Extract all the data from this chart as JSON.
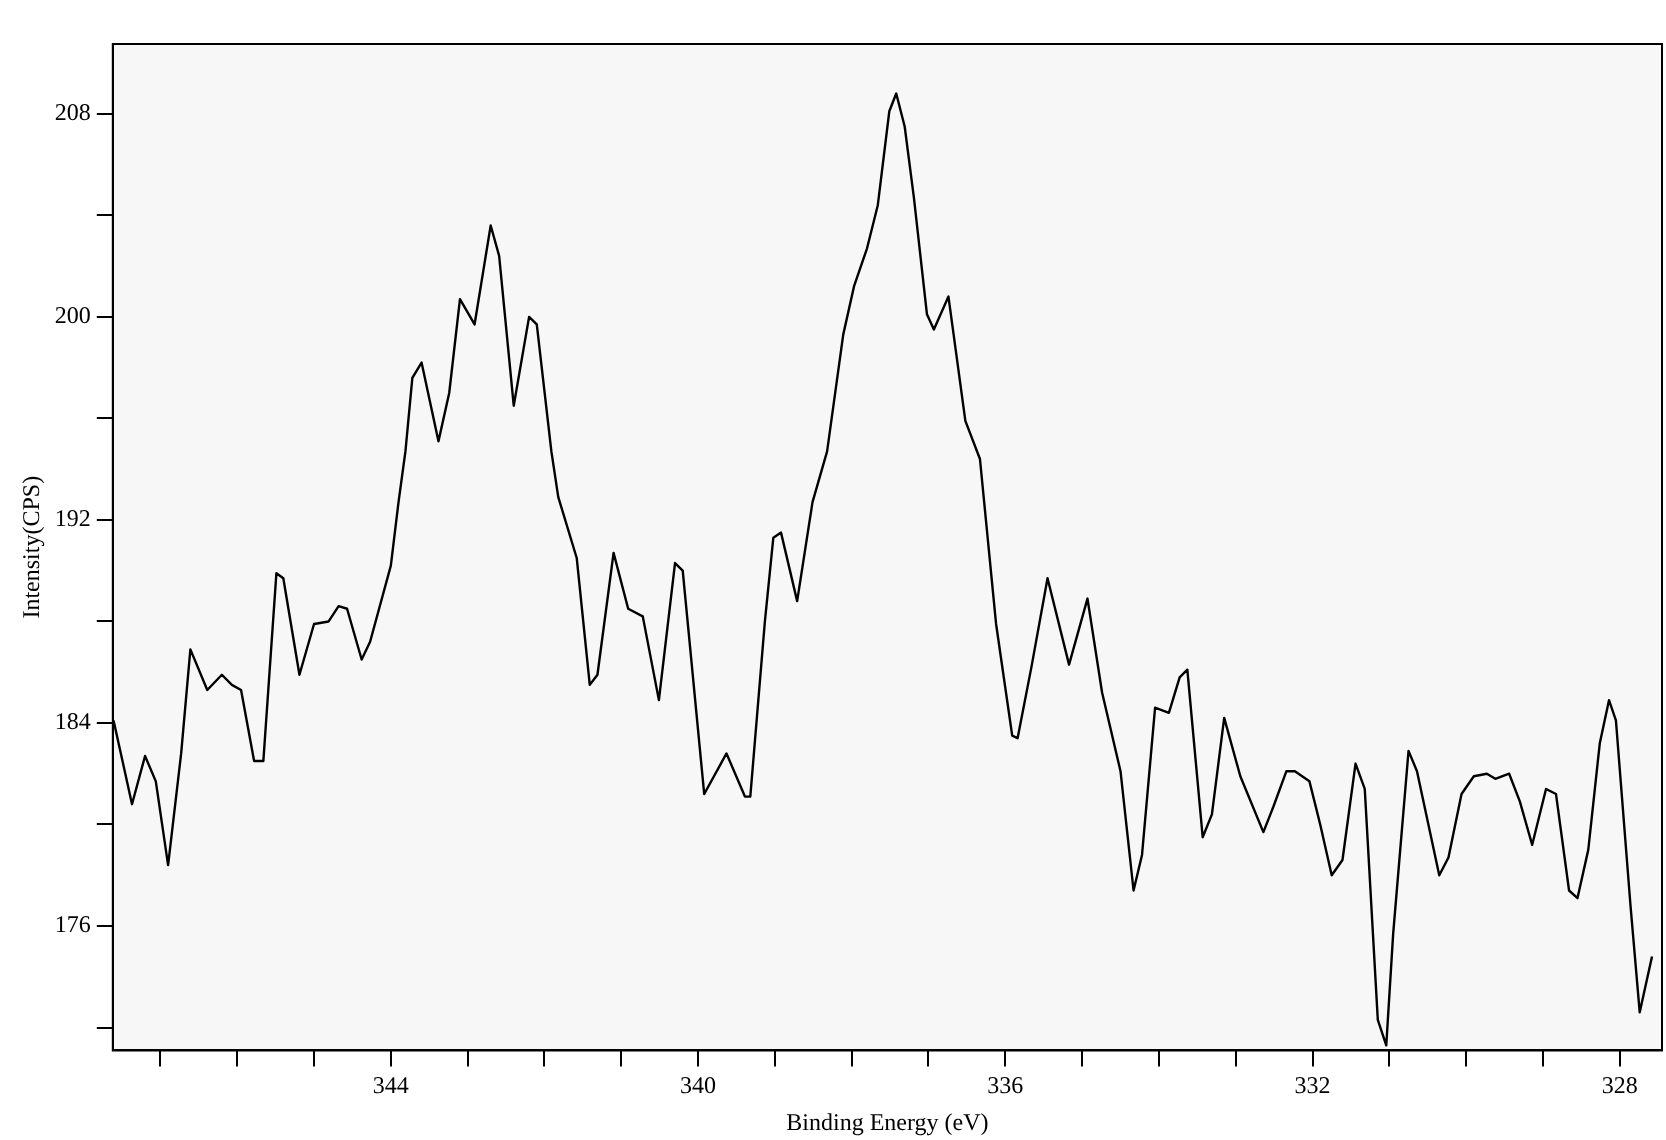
{
  "chart_data": {
    "type": "line",
    "xlabel": "Binding Energy (eV)",
    "ylabel": "Intensity(CPS)",
    "xlim": [
      347.62,
      327.45
    ],
    "ylim": [
      171.1,
      210.75
    ],
    "xticks": [
      {
        "value": 347,
        "label": null
      },
      {
        "value": 346,
        "label": null
      },
      {
        "value": 345,
        "label": null
      },
      344,
      {
        "value": 343,
        "label": null
      },
      {
        "value": 342,
        "label": null
      },
      {
        "value": 341,
        "label": null
      },
      340,
      {
        "value": 339,
        "label": null
      },
      {
        "value": 338,
        "label": null
      },
      {
        "value": 337,
        "label": null
      },
      336,
      {
        "value": 335,
        "label": null
      },
      {
        "value": 334,
        "label": null
      },
      {
        "value": 333,
        "label": null
      },
      332,
      {
        "value": 331,
        "label": null
      },
      {
        "value": 330,
        "label": null
      },
      {
        "value": 329,
        "label": null
      },
      328
    ],
    "yticks": [
      {
        "value": 172,
        "label": null
      },
      176,
      {
        "value": 180,
        "label": null
      },
      184,
      {
        "value": 188,
        "label": null
      },
      192,
      {
        "value": 196,
        "label": null
      },
      200,
      {
        "value": 204,
        "label": null
      },
      208
    ],
    "grid": false,
    "legend": false,
    "marker": "none",
    "line_style": "solid",
    "x": [
      347.61,
      347.37,
      347.2,
      347.06,
      346.9,
      346.73,
      346.61,
      346.39,
      346.2,
      346.07,
      345.95,
      345.78,
      345.66,
      345.49,
      345.4,
      345.19,
      345.0,
      344.81,
      344.68,
      344.57,
      344.38,
      344.27,
      344.0,
      343.9,
      343.81,
      343.72,
      343.6,
      343.38,
      343.24,
      343.1,
      342.91,
      342.7,
      342.59,
      342.4,
      342.2,
      342.1,
      341.91,
      341.82,
      341.58,
      341.41,
      341.31,
      341.1,
      340.91,
      340.72,
      340.51,
      340.3,
      340.2,
      339.92,
      339.63,
      339.39,
      339.32,
      339.13,
      339.02,
      338.92,
      338.71,
      338.51,
      338.32,
      338.11,
      337.97,
      337.8,
      337.66,
      337.51,
      337.42,
      337.31,
      337.19,
      337.02,
      336.93,
      336.74,
      336.52,
      336.33,
      336.12,
      335.91,
      335.84,
      335.66,
      335.45,
      335.17,
      334.93,
      334.74,
      334.5,
      334.33,
      334.22,
      334.05,
      333.87,
      333.73,
      333.63,
      333.43,
      333.31,
      333.15,
      332.94,
      332.64,
      332.51,
      332.34,
      332.23,
      332.04,
      331.9,
      331.75,
      331.61,
      331.44,
      331.32,
      331.15,
      331.04,
      330.95,
      330.75,
      330.64,
      330.35,
      330.23,
      330.06,
      329.9,
      329.73,
      329.62,
      329.44,
      329.3,
      329.14,
      328.96,
      328.83,
      328.66,
      328.55,
      328.41,
      328.26,
      328.14,
      328.05,
      327.86,
      327.74,
      327.58
    ],
    "series": [
      {
        "color": "#000000",
        "values": [
          184.1,
          180.8,
          182.7,
          181.7,
          178.4,
          182.8,
          186.9,
          185.3,
          185.9,
          185.5,
          185.3,
          182.5,
          182.5,
          189.9,
          189.7,
          185.9,
          187.9,
          188.0,
          188.6,
          188.5,
          186.5,
          187.2,
          190.2,
          192.7,
          194.7,
          197.6,
          198.2,
          195.1,
          197.0,
          200.7,
          199.7,
          203.6,
          202.4,
          196.5,
          200.0,
          199.7,
          194.7,
          192.9,
          190.5,
          185.5,
          185.9,
          190.7,
          188.5,
          188.2,
          184.9,
          190.3,
          190.0,
          181.2,
          182.8,
          181.1,
          181.1,
          188.0,
          191.3,
          191.5,
          188.8,
          192.7,
          194.7,
          199.3,
          201.2,
          202.7,
          204.4,
          208.1,
          208.8,
          207.5,
          204.7,
          200.1,
          199.5,
          200.8,
          195.9,
          194.4,
          187.9,
          183.5,
          183.4,
          186.2,
          189.7,
          186.3,
          188.9,
          185.2,
          182.1,
          177.4,
          178.8,
          184.6,
          184.4,
          185.8,
          186.1,
          179.5,
          180.4,
          184.2,
          181.9,
          179.7,
          180.7,
          182.1,
          182.1,
          181.7,
          180.0,
          178.0,
          178.6,
          182.4,
          181.4,
          172.3,
          171.3,
          175.7,
          182.9,
          182.1,
          178.0,
          178.7,
          181.2,
          181.9,
          182.0,
          181.8,
          182.0,
          180.9,
          179.2,
          181.4,
          181.2,
          177.4,
          177.1,
          179.0,
          183.2,
          184.9,
          184.1,
          176.8,
          172.6,
          174.8
        ]
      }
    ]
  }
}
